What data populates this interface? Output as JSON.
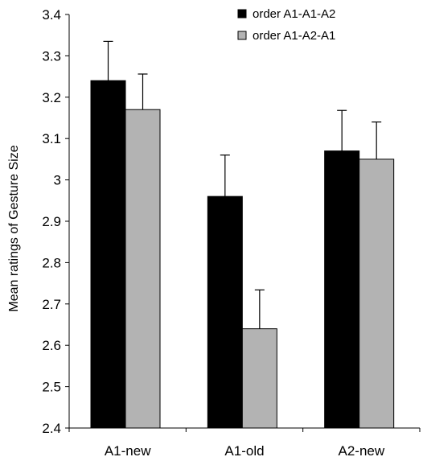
{
  "chart_data": {
    "type": "bar",
    "title": "",
    "xlabel": "",
    "ylabel": "Mean ratings of Gesture Size",
    "ylim": [
      2.4,
      3.4
    ],
    "y_ticks": [
      2.4,
      2.5,
      2.6,
      2.7,
      2.8,
      2.9,
      3,
      3.1,
      3.2,
      3.3,
      3.4
    ],
    "y_tick_labels": [
      "2.4",
      "2.5",
      "2.6",
      "2.7",
      "2.8",
      "2.9",
      "3",
      "3.1",
      "3.2",
      "3.3",
      "3.4"
    ],
    "categories": [
      "A1-new",
      "A1-old",
      "A2-new"
    ],
    "grid": false,
    "legend_position": "top-right",
    "series": [
      {
        "name": "order A1-A1-A2",
        "color": "#000000",
        "values": [
          3.24,
          2.96,
          3.07
        ],
        "error_upper": [
          3.335,
          3.06,
          3.168
        ]
      },
      {
        "name": "order A1-A2-A1",
        "color": "#b3b3b3",
        "values": [
          3.17,
          2.64,
          3.05
        ],
        "error_upper": [
          3.256,
          2.734,
          3.14
        ]
      }
    ]
  }
}
